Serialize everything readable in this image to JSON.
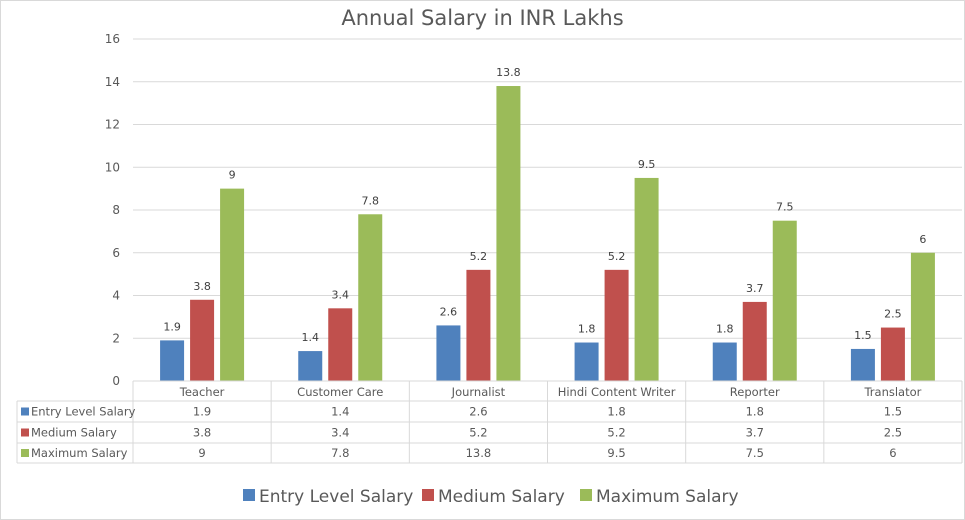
{
  "chart_data": {
    "type": "bar",
    "title": "Annual Salary in INR Lakhs",
    "xlabel": "",
    "ylabel": "",
    "ylim": [
      0,
      16
    ],
    "yticks": [
      "0",
      "2",
      "4",
      "6",
      "8",
      "10",
      "12",
      "14",
      "16"
    ],
    "grid": true,
    "legend_position": "bottom",
    "data_table": true,
    "categories": [
      "Teacher",
      "Customer Care",
      "Journalist",
      "Hindi Content Writer",
      "Reporter",
      "Translator"
    ],
    "series": [
      {
        "name": "Entry Level Salary",
        "color": "#4f81bd",
        "values": [
          1.9,
          1.4,
          2.6,
          1.8,
          1.8,
          1.5
        ],
        "labels": [
          "1.9",
          "1.4",
          "2.6",
          "1.8",
          "1.8",
          "1.5"
        ]
      },
      {
        "name": "Medium Salary",
        "color": "#c0504d",
        "values": [
          3.8,
          3.4,
          5.2,
          5.2,
          3.7,
          2.5
        ],
        "labels": [
          "3.8",
          "3.4",
          "5.2",
          "5.2",
          "3.7",
          "2.5"
        ]
      },
      {
        "name": "Maximum Salary",
        "color": "#9bbb59",
        "values": [
          9,
          7.8,
          13.8,
          9.5,
          7.5,
          6
        ],
        "labels": [
          "9",
          "7.8",
          "13.8",
          "9.5",
          "7.5",
          "6"
        ]
      }
    ]
  }
}
